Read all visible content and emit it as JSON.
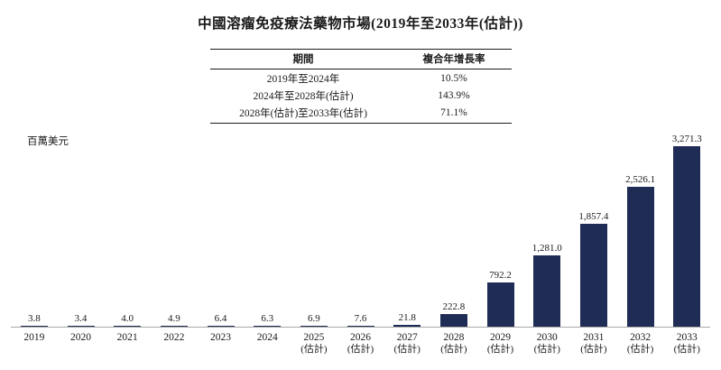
{
  "page": {
    "title": "中國溶瘤免疫療法藥物市場(2019年至2033年(估計))"
  },
  "table": {
    "headers": [
      "期間",
      "複合年增長率"
    ],
    "rows": [
      [
        "2019年至2024年",
        "10.5%"
      ],
      [
        "2024年至2028年(估計)",
        "143.9%"
      ],
      [
        "2028年(估計)至2033年(估計)",
        "71.1%"
      ]
    ]
  },
  "chart": {
    "unit_label": "百萬美元"
  },
  "chart_data": {
    "type": "bar",
    "title": "中國溶瘤免疫療法藥物市場(2019年至2033年(估計))",
    "ylabel": "百萬美元",
    "xlabel": "",
    "ylim": [
      0,
      3271.3
    ],
    "grid": false,
    "legend": "none",
    "bar_color": "#1f2c55",
    "axis_color": "#a9a9a9",
    "x_labels": [
      {
        "year": "2019",
        "note": ""
      },
      {
        "year": "2020",
        "note": ""
      },
      {
        "year": "2021",
        "note": ""
      },
      {
        "year": "2022",
        "note": ""
      },
      {
        "year": "2023",
        "note": ""
      },
      {
        "year": "2024",
        "note": ""
      },
      {
        "year": "2025",
        "note": "(估計)"
      },
      {
        "year": "2026",
        "note": "(估計)"
      },
      {
        "year": "2027",
        "note": "(估計)"
      },
      {
        "year": "2028",
        "note": "(估計)"
      },
      {
        "year": "2029",
        "note": "(估計)"
      },
      {
        "year": "2030",
        "note": "(估計)"
      },
      {
        "year": "2031",
        "note": "(估計)"
      },
      {
        "year": "2032",
        "note": "(估計)"
      },
      {
        "year": "2033",
        "note": "(估計)"
      }
    ],
    "values": [
      3.8,
      3.4,
      4.0,
      4.9,
      6.4,
      6.3,
      6.9,
      7.6,
      21.8,
      222.8,
      792.2,
      1281.0,
      1857.4,
      2526.1,
      3271.3
    ],
    "value_labels": [
      "3.8",
      "3.4",
      "4.0",
      "4.9",
      "6.4",
      "6.3",
      "6.9",
      "7.6",
      "21.8",
      "222.8",
      "792.2",
      "1,281.0",
      "1,857.4",
      "2,526.1",
      "3,271.3"
    ]
  }
}
